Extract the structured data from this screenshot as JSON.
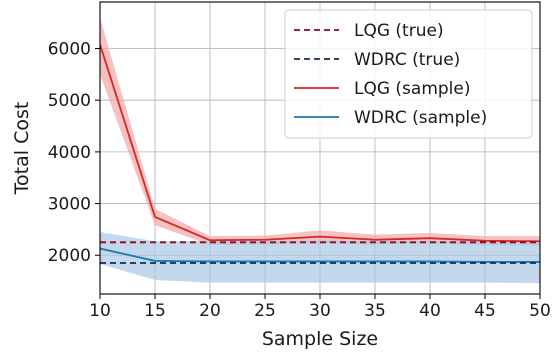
{
  "chart_data": {
    "type": "line",
    "title": "",
    "xlabel": "Sample Size",
    "ylabel": "Total Cost",
    "x": [
      10,
      15,
      20,
      25,
      30,
      35,
      40,
      45,
      50
    ],
    "xlim": [
      10,
      50
    ],
    "ylim": [
      1250,
      6900
    ],
    "xticks": [
      10,
      15,
      20,
      25,
      30,
      35,
      40,
      45,
      50
    ],
    "yticks": [
      2000,
      3000,
      4000,
      5000,
      6000
    ],
    "grid": true,
    "legend_position": "top-right",
    "series": [
      {
        "name": "LQG (true)",
        "style": "dashed",
        "color": "#8b0a1e",
        "values": [
          2250,
          2250,
          2250,
          2250,
          2250,
          2250,
          2250,
          2250,
          2250
        ]
      },
      {
        "name": "WDRC (true)",
        "style": "dashed",
        "color": "#0d2f4f",
        "values": [
          1850,
          1850,
          1850,
          1850,
          1850,
          1850,
          1850,
          1850,
          1850
        ]
      },
      {
        "name": "LQG (sample)",
        "style": "solid",
        "color": "#d62728",
        "band_color": "#f1a7a7",
        "values": [
          6080,
          2740,
          2290,
          2300,
          2360,
          2300,
          2330,
          2280,
          2270
        ],
        "lower": [
          5500,
          2580,
          2200,
          2210,
          2230,
          2210,
          2230,
          2200,
          2190
        ],
        "upper": [
          6600,
          2900,
          2370,
          2380,
          2480,
          2400,
          2430,
          2370,
          2370
        ]
      },
      {
        "name": "WDRC (sample)",
        "style": "solid",
        "color": "#1f77b4",
        "band_color": "#a9c8e4",
        "values": [
          2130,
          1890,
          1880,
          1880,
          1880,
          1880,
          1880,
          1870,
          1870
        ],
        "lower": [
          1830,
          1520,
          1470,
          1470,
          1470,
          1470,
          1470,
          1470,
          1460
        ],
        "upper": [
          2450,
          2270,
          2280,
          2280,
          2290,
          2280,
          2280,
          2280,
          2270
        ]
      }
    ]
  }
}
